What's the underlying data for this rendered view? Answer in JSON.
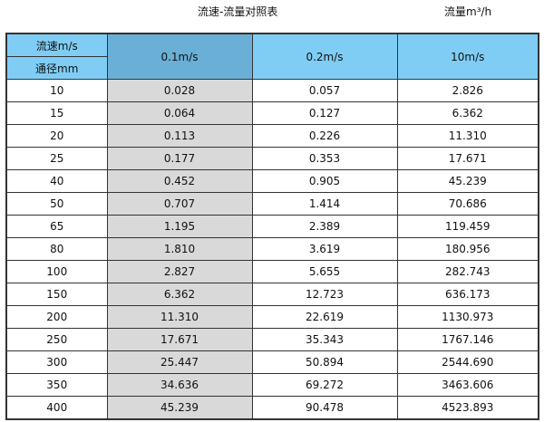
{
  "title": "流速-流量对照表",
  "unit_label": "流量m³/h",
  "header": {
    "velocity_label": "流速m/s",
    "diameter_label": "通径mm",
    "columns": [
      "0.1m/s",
      "0.2m/s",
      "10m/s"
    ]
  },
  "colors": {
    "header": "#7fcdf4",
    "header_highlight": "#6aafd6",
    "column_highlight": "#d9d9d9"
  },
  "rows": [
    [
      "10",
      "0.028",
      "0.057",
      "2.826"
    ],
    [
      "15",
      "0.064",
      "0.127",
      "6.362"
    ],
    [
      "20",
      "0.113",
      "0.226",
      "11.310"
    ],
    [
      "25",
      "0.177",
      "0.353",
      "17.671"
    ],
    [
      "40",
      "0.452",
      "0.905",
      "45.239"
    ],
    [
      "50",
      "0.707",
      "1.414",
      "70.686"
    ],
    [
      "65",
      "1.195",
      "2.389",
      "119.459"
    ],
    [
      "80",
      "1.810",
      "3.619",
      "180.956"
    ],
    [
      "100",
      "2.827",
      "5.655",
      "282.743"
    ],
    [
      "150",
      "6.362",
      "12.723",
      "636.173"
    ],
    [
      "200",
      "11.310",
      "22.619",
      "1130.973"
    ],
    [
      "250",
      "17.671",
      "35.343",
      "1767.146"
    ],
    [
      "300",
      "25.447",
      "50.894",
      "2544.690"
    ],
    [
      "350",
      "34.636",
      "69.272",
      "3463.606"
    ],
    [
      "400",
      "45.239",
      "90.478",
      "4523.893"
    ]
  ]
}
